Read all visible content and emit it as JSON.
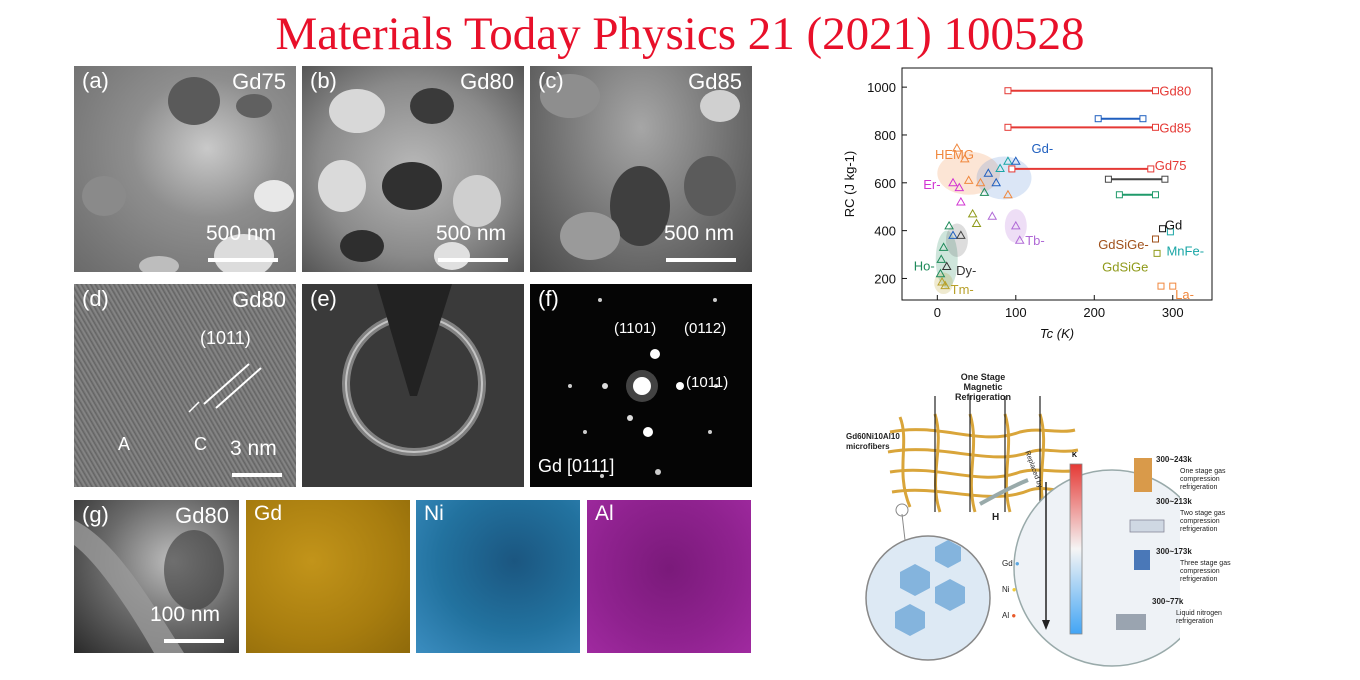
{
  "header": {
    "title": "Materials Today Physics 21 (2021) 100528"
  },
  "tem_panels": {
    "a": {
      "label": "(a)",
      "tag": "Gd75",
      "scale": "500 nm"
    },
    "b": {
      "label": "(b)",
      "tag": "Gd80",
      "scale": "500 nm"
    },
    "c": {
      "label": "(c)",
      "tag": "Gd85",
      "scale": "500 nm"
    },
    "d": {
      "label": "(d)",
      "tag": "Gd80",
      "plane": "(1011)",
      "region_a": "A",
      "region_c": "C",
      "scale": "3 nm"
    },
    "e": {
      "label": "(e)"
    },
    "f": {
      "label": "(f)",
      "spot1": "(1101)",
      "spot2": "(0112)",
      "spot3": "(1011)",
      "zone": "Gd [0111]"
    },
    "g": {
      "label": "(g)",
      "tag": "Gd80",
      "scale": "100 nm"
    },
    "maps": [
      {
        "element": "Gd",
        "color": "#b58b10"
      },
      {
        "element": "Ni",
        "color": "#1f6e9e"
      },
      {
        "element": "Al",
        "color": "#8c1f8c"
      }
    ]
  },
  "chart_data": {
    "type": "scatter",
    "xlabel": "Tc (K)",
    "ylabel": "RC (J kg-1)",
    "xlim": [
      -45,
      350
    ],
    "ylim": [
      110,
      1080
    ],
    "xticks": [
      0,
      100,
      200,
      300
    ],
    "yticks": [
      200,
      400,
      600,
      800,
      1000
    ],
    "ranges": [
      {
        "name": "Gd80",
        "color": "#e53935",
        "y": 985,
        "x": [
          90,
          278
        ]
      },
      {
        "name": "Gd85",
        "color": "#e53935",
        "y": 832,
        "x": [
          90,
          278
        ]
      },
      {
        "name": "Gd75",
        "color": "#e53935",
        "y": 658,
        "x": [
          95,
          272
        ]
      },
      {
        "color": "#1f5fbf",
        "y": 868,
        "x": [
          205,
          262
        ]
      },
      {
        "color": "#444444",
        "y": 615,
        "x": [
          218,
          290
        ]
      },
      {
        "color": "#1f9a6a",
        "y": 550,
        "x": [
          232,
          278
        ]
      }
    ],
    "labels": [
      {
        "text": "Gd80",
        "x": 283,
        "y": 985,
        "color": "#e53935"
      },
      {
        "text": "Gd85",
        "x": 283,
        "y": 832,
        "color": "#e53935"
      },
      {
        "text": "Gd75",
        "x": 277,
        "y": 675,
        "color": "#e53935"
      },
      {
        "text": "Gd-",
        "x": 120,
        "y": 745,
        "color": "#1f5fbf"
      },
      {
        "text": "HEMG",
        "x": -3,
        "y": 720,
        "color": "#f0883e"
      },
      {
        "text": "Er-",
        "x": -18,
        "y": 595,
        "color": "#d133d1"
      },
      {
        "text": "Tb-",
        "x": 112,
        "y": 360,
        "color": "#b06ad6"
      },
      {
        "text": "Gd",
        "x": 290,
        "y": 425,
        "color": "#111111"
      },
      {
        "text": "GdSiGe-",
        "x": 205,
        "y": 345,
        "color": "#a0501a"
      },
      {
        "text": "MnFe-",
        "x": 292,
        "y": 318,
        "color": "#1aa6a6"
      },
      {
        "text": "GdSiGe",
        "x": 210,
        "y": 250,
        "color": "#8f9a1a"
      },
      {
        "text": "Ho-",
        "x": -30,
        "y": 255,
        "color": "#1f8a5a"
      },
      {
        "text": "Dy-",
        "x": 24,
        "y": 235,
        "color": "#333333"
      },
      {
        "text": "Tm-",
        "x": 17,
        "y": 155,
        "color": "#b8a02a"
      },
      {
        "text": "La-",
        "x": 303,
        "y": 135,
        "color": "#f0883e"
      }
    ],
    "points": [
      {
        "x": 25,
        "y": 745,
        "c": "#f0883e"
      },
      {
        "x": 35,
        "y": 700,
        "c": "#f0883e"
      },
      {
        "x": 55,
        "y": 600,
        "c": "#f0883e"
      },
      {
        "x": 20,
        "y": 600,
        "c": "#d133d1"
      },
      {
        "x": 28,
        "y": 580,
        "c": "#d133d1"
      },
      {
        "x": 40,
        "y": 610,
        "c": "#f0883e"
      },
      {
        "x": 65,
        "y": 640,
        "c": "#1f5fbf"
      },
      {
        "x": 80,
        "y": 660,
        "c": "#1aa6a6"
      },
      {
        "x": 90,
        "y": 690,
        "c": "#1aa6a6"
      },
      {
        "x": 100,
        "y": 690,
        "c": "#1f5fbf"
      },
      {
        "x": 75,
        "y": 600,
        "c": "#1f5fbf"
      },
      {
        "x": 60,
        "y": 560,
        "c": "#1f8a5a"
      },
      {
        "x": 90,
        "y": 550,
        "c": "#f0883e"
      },
      {
        "x": 30,
        "y": 520,
        "c": "#d133d1"
      },
      {
        "x": 45,
        "y": 470,
        "c": "#8f9a1a"
      },
      {
        "x": 70,
        "y": 460,
        "c": "#b06ad6"
      },
      {
        "x": 100,
        "y": 420,
        "c": "#b06ad6"
      },
      {
        "x": 105,
        "y": 360,
        "c": "#b06ad6"
      },
      {
        "x": 15,
        "y": 420,
        "c": "#1f8a5a"
      },
      {
        "x": 20,
        "y": 380,
        "c": "#1f5fbf"
      },
      {
        "x": 8,
        "y": 330,
        "c": "#1f8a5a"
      },
      {
        "x": 5,
        "y": 280,
        "c": "#1f8a5a"
      },
      {
        "x": 12,
        "y": 250,
        "c": "#333333"
      },
      {
        "x": 4,
        "y": 220,
        "c": "#1f8a5a"
      },
      {
        "x": 6,
        "y": 185,
        "c": "#b8a02a"
      },
      {
        "x": 10,
        "y": 170,
        "c": "#b8a02a"
      },
      {
        "x": 30,
        "y": 380,
        "c": "#444444"
      },
      {
        "x": 50,
        "y": 430,
        "c": "#8f9a1a"
      }
    ],
    "squares": [
      {
        "x": 287,
        "y": 408,
        "c": "#111111"
      },
      {
        "x": 278,
        "y": 365,
        "c": "#a0501a"
      },
      {
        "x": 297,
        "y": 395,
        "c": "#1aa6a6"
      },
      {
        "x": 280,
        "y": 305,
        "c": "#8f9a1a"
      },
      {
        "x": 285,
        "y": 168,
        "c": "#f0883e"
      },
      {
        "x": 300,
        "y": 168,
        "c": "#f0883e"
      }
    ]
  },
  "schematic": {
    "title_line1": "One Stage",
    "title_line2": "Magnetic Refrigeration",
    "fiber_line1": "Gd60Ni10Al10",
    "fiber_line2": "microfibers",
    "field": "H",
    "replaced_by": "Replaced by",
    "scale_unit": "K",
    "scale_ticks": [
      "300",
      "250",
      "200",
      "150",
      "100",
      "50"
    ],
    "legend": [
      "Gd",
      "Ni",
      "Al"
    ],
    "legend_colors": [
      "#5aa6e0",
      "#f2cc3a",
      "#e85a2a"
    ],
    "stages": [
      {
        "range": "300~243k",
        "line1": "One stage gas",
        "line2": "compression",
        "line3": "refrigeration"
      },
      {
        "range": "300~213k",
        "line1": "Two stage gas",
        "line2": "compression",
        "line3": "refrigeration"
      },
      {
        "range": "300~173k",
        "line1": "Three stage gas",
        "line2": "compression",
        "line3": "refrigeration"
      },
      {
        "range": "300~77k",
        "line1": "Liquid nitrogen",
        "line2": "refrigeration",
        "line3": ""
      }
    ]
  }
}
